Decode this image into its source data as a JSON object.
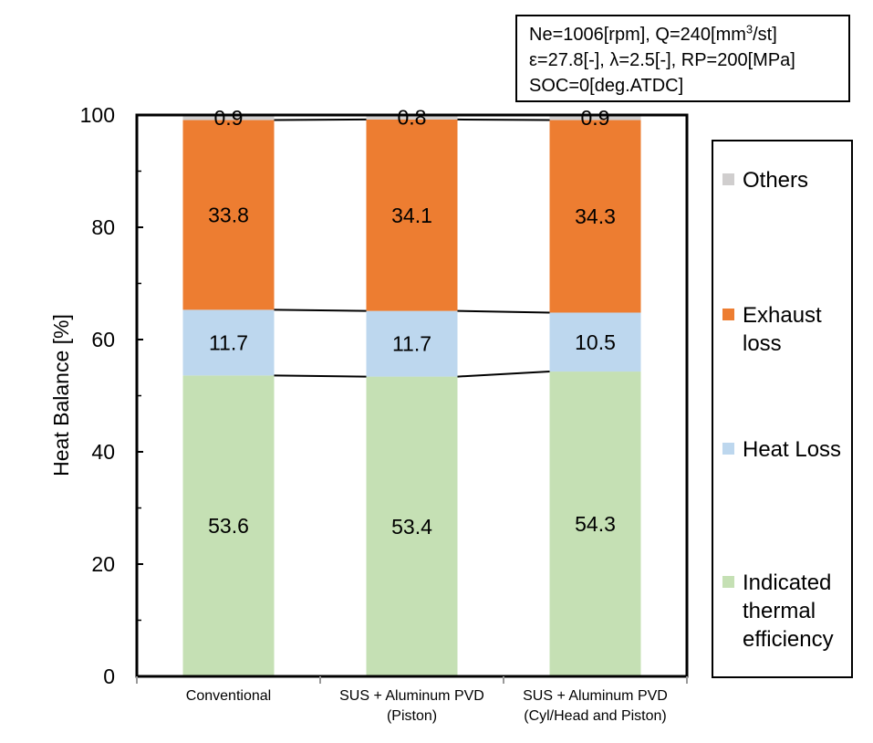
{
  "condition_text": {
    "line1_prefix": "Ne=1006[rpm], Q=240[mm",
    "line1_sup": "3",
    "line1_suffix": "/st]",
    "line2": "ε=27.8[-], λ=2.5[-], RP=200[MPa]",
    "line3": "SOC=0[deg.ATDC]"
  },
  "colors": {
    "indicated": "#c5e0b4",
    "heat_loss": "#bdd7ee",
    "exhaust": "#ed7d31",
    "others": "#d0cece"
  },
  "chart_data": {
    "type": "bar",
    "stacked": true,
    "ylabel": "Heat Balance [%]",
    "xlabel": "",
    "ylim": [
      0,
      100
    ],
    "yticks": [
      "0",
      "20",
      "40",
      "60",
      "80",
      "100"
    ],
    "categories": [
      [
        "Conventional"
      ],
      [
        "SUS + Aluminum PVD",
        "(Piston)"
      ],
      [
        "SUS + Aluminum PVD",
        "(Cyl/Head and Piston)"
      ]
    ],
    "series": [
      {
        "name": "Indicated thermal efficiency",
        "color": "#c5e0b4",
        "values": [
          53.6,
          53.4,
          54.3
        ],
        "labels": [
          "53.6",
          "53.4",
          "54.3"
        ]
      },
      {
        "name": "Heat Loss",
        "color": "#bdd7ee",
        "values": [
          11.7,
          11.7,
          10.5
        ],
        "labels": [
          "11.7",
          "11.7",
          "10.5"
        ]
      },
      {
        "name": "Exhaust loss",
        "color": "#ed7d31",
        "values": [
          33.8,
          34.1,
          34.3
        ],
        "labels": [
          "33.8",
          "34.1",
          "34.3"
        ]
      },
      {
        "name": "Others",
        "color": "#d0cece",
        "values": [
          0.9,
          0.8,
          0.9
        ],
        "labels": [
          "0.9",
          "0.8",
          "0.9"
        ]
      }
    ],
    "series_lines": true,
    "legend": {
      "position": "right",
      "order": [
        "Others",
        "Exhaust loss",
        "Heat Loss",
        "Indicated thermal efficiency"
      ]
    }
  },
  "legend": {
    "others": "Others",
    "exhaust": "Exhaust loss",
    "heat_loss": "Heat Loss",
    "indicated": "Indicated thermal efficiency"
  }
}
